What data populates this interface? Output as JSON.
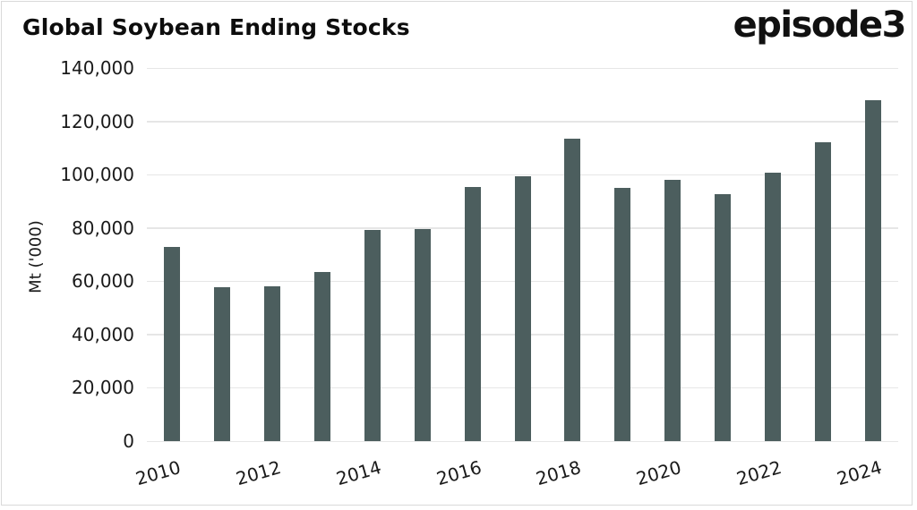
{
  "branding": {
    "logo_text": "episode3"
  },
  "chart_data": {
    "type": "bar",
    "title": "Global Soybean Ending Stocks",
    "ylabel": "Mt ('000)",
    "xlabel": "",
    "categories": [
      "2010",
      "2011",
      "2012",
      "2013",
      "2014",
      "2015",
      "2016",
      "2017",
      "2018",
      "2019",
      "2020",
      "2021",
      "2022",
      "2023",
      "2024"
    ],
    "values": [
      72800,
      57600,
      58200,
      63600,
      79100,
      79600,
      95200,
      99500,
      113600,
      94900,
      98200,
      92500,
      100700,
      112000,
      128000
    ],
    "ylim": [
      0,
      140000
    ],
    "ytick_step": 20000,
    "ytick_labels": [
      "0",
      "20,000",
      "40,000",
      "60,000",
      "80,000",
      "100,000",
      "120,000",
      "140,000"
    ],
    "xtick_labels_shown": [
      "2010",
      "2012",
      "2014",
      "2016",
      "2018",
      "2020",
      "2022",
      "2024"
    ],
    "xtick_every": 2,
    "grid": true,
    "legend_position": "none",
    "bar_color": "#4c5e5e",
    "grid_color": "#e6e6e6",
    "text_color": "#1a1a1a",
    "background_color": "#ffffff"
  }
}
